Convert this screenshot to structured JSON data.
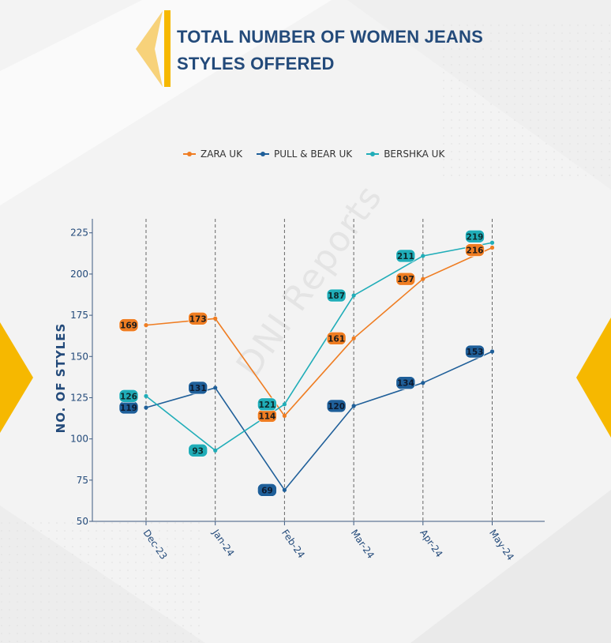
{
  "title_line1": "TOTAL NUMBER OF WOMEN JEANS",
  "title_line2": "STYLES OFFERED",
  "watermark": "DNI Reports",
  "colors": {
    "zara": "#ef7d22",
    "pullbear": "#1f5f99",
    "bershka": "#20adb8",
    "title": "#234a7a",
    "accent": "#f6b800"
  },
  "chart_data": {
    "type": "line",
    "categories": [
      "Dec-23",
      "Jan-24",
      "Feb-24",
      "Mar-24",
      "Apr-24",
      "May-24"
    ],
    "series": [
      {
        "name": "ZARA UK",
        "color": "#ef7d22",
        "values": [
          169,
          173,
          114,
          161,
          197,
          216
        ]
      },
      {
        "name": "PULL & BEAR UK",
        "color": "#1f5f99",
        "values": [
          119,
          131,
          69,
          120,
          134,
          153
        ]
      },
      {
        "name": "BERSHKA UK",
        "color": "#20adb8",
        "values": [
          126,
          93,
          121,
          187,
          211,
          219
        ]
      }
    ],
    "ylabel": "NO. OF STYLES",
    "xlabel": "",
    "ylim": [
      50,
      230
    ],
    "yticks": [
      50,
      75,
      100,
      125,
      150,
      175,
      200,
      225
    ],
    "legend": "top-center",
    "grid": "vertical dashed"
  }
}
